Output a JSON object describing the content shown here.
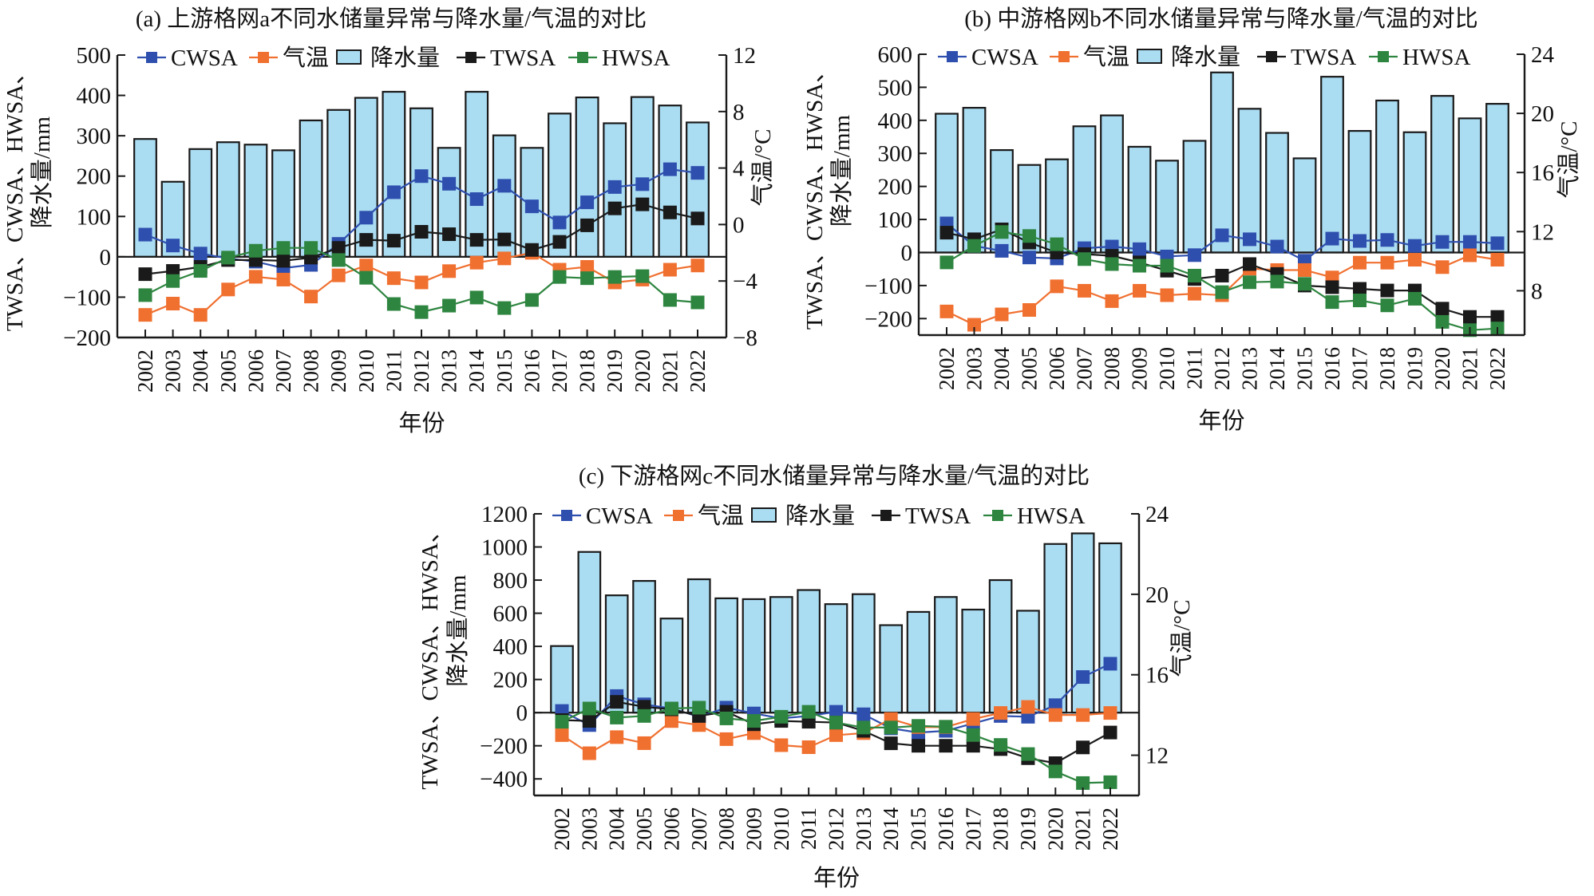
{
  "colors": {
    "cwsa": "#2f4fae",
    "temp": "#f07030",
    "precip_fill": "#aadcf2",
    "precip_edge": "#1a1a1a",
    "twsa": "#1a1a1a",
    "hwsa": "#2e8540"
  },
  "legend": [
    "CWSA",
    "气温",
    "降水量",
    "TWSA",
    "HWSA"
  ],
  "chart_data": [
    {
      "id": "a",
      "type": "bar+line",
      "title": "(a) 上游格网a不同水储量异常与降水量/气温的对比",
      "xlabel": "年份",
      "ylabel_lines": [
        "TWSA、CWSA、HWSA、",
        "降水量/mm"
      ],
      "y2label": "气温/°C",
      "categories": [
        "2002",
        "2003",
        "2004",
        "2005",
        "2006",
        "2007",
        "2008",
        "2009",
        "2010",
        "2011",
        "2012",
        "2013",
        "2014",
        "2015",
        "2016",
        "2017",
        "2018",
        "2019",
        "2020",
        "2021",
        "2022"
      ],
      "ylim": [
        -200,
        500
      ],
      "yticks": [
        -200,
        -100,
        0,
        100,
        200,
        300,
        400,
        500
      ],
      "y2lim": [
        -8,
        12
      ],
      "y2ticks": [
        -8,
        -4,
        0,
        4,
        8,
        12
      ],
      "legend_position": "top",
      "series": [
        {
          "name": "降水量",
          "type": "bar",
          "axis": "left",
          "values": [
            292,
            186,
            267,
            284,
            278,
            264,
            338,
            364,
            394,
            409,
            368,
            270,
            409,
            301,
            270,
            355,
            395,
            331,
            396,
            375,
            333
          ]
        },
        {
          "name": "CWSA",
          "type": "line",
          "axis": "left",
          "values": [
            55,
            28,
            8,
            -4,
            -12,
            -28,
            -20,
            32,
            97,
            160,
            200,
            181,
            143,
            176,
            125,
            85,
            135,
            173,
            180,
            217,
            208
          ]
        },
        {
          "name": "气温",
          "type": "line",
          "axis": "right",
          "values": [
            -6.4,
            -5.6,
            -6.4,
            -4.6,
            -3.7,
            -3.9,
            -5.1,
            -3.6,
            -2.9,
            -3.8,
            -4.1,
            -3.3,
            -2.7,
            -2.4,
            -2.0,
            -3.2,
            -3.0,
            -4.1,
            -3.9,
            -3.2,
            -2.9
          ]
        },
        {
          "name": "TWSA",
          "type": "line",
          "axis": "left",
          "values": [
            -43,
            -35,
            -25,
            -8,
            -8,
            -10,
            -2,
            22,
            42,
            40,
            62,
            56,
            42,
            43,
            17,
            37,
            78,
            120,
            130,
            110,
            95
          ]
        },
        {
          "name": "HWSA",
          "type": "line",
          "axis": "left",
          "values": [
            -95,
            -60,
            -35,
            -2,
            15,
            22,
            22,
            -8,
            -52,
            -117,
            -137,
            -121,
            -101,
            -127,
            -107,
            -50,
            -53,
            -50,
            -48,
            -107,
            -113
          ]
        }
      ]
    },
    {
      "id": "b",
      "type": "bar+line",
      "title": "(b) 中游格网b不同水储量异常与降水量/气温的对比",
      "xlabel": "年份",
      "ylabel_lines": [
        "TWSA、CWSA、HWSA、",
        "降水量/mm"
      ],
      "y2label": "气温/°C",
      "categories": [
        "2002",
        "2003",
        "2004",
        "2005",
        "2006",
        "2007",
        "2008",
        "2009",
        "2010",
        "2011",
        "2012",
        "2013",
        "2014",
        "2015",
        "2016",
        "2017",
        "2018",
        "2019",
        "2020",
        "2021",
        "2022"
      ],
      "ylim": [
        -250,
        600
      ],
      "yticks": [
        -200,
        -100,
        0,
        100,
        200,
        300,
        400,
        500,
        600
      ],
      "y2lim": [
        5,
        24
      ],
      "y2ticks": [
        8,
        12,
        16,
        20,
        24
      ],
      "legend_position": "top",
      "series": [
        {
          "name": "降水量",
          "type": "bar",
          "axis": "left",
          "values": [
            420,
            438,
            310,
            265,
            282,
            382,
            415,
            320,
            278,
            338,
            545,
            435,
            362,
            285,
            532,
            368,
            460,
            364,
            474,
            406,
            450
          ]
        },
        {
          "name": "CWSA",
          "type": "line",
          "axis": "left",
          "values": [
            88,
            20,
            5,
            -15,
            -18,
            13,
            18,
            10,
            -12,
            -8,
            52,
            40,
            18,
            -25,
            42,
            35,
            38,
            20,
            32,
            32,
            28
          ]
        },
        {
          "name": "气温",
          "type": "line",
          "axis": "right",
          "values": [
            6.6,
            5.7,
            6.4,
            6.7,
            8.3,
            8.0,
            7.3,
            8.0,
            7.7,
            7.8,
            7.7,
            9.5,
            9.4,
            9.4,
            8.9,
            9.9,
            9.9,
            10.1,
            9.6,
            10.4,
            10.1
          ]
        },
        {
          "name": "TWSA",
          "type": "line",
          "axis": "left",
          "values": [
            60,
            40,
            70,
            30,
            0,
            -5,
            -10,
            -30,
            -55,
            -80,
            -70,
            -35,
            -65,
            -100,
            -105,
            -110,
            -115,
            -115,
            -170,
            -195,
            -195
          ]
        },
        {
          "name": "HWSA",
          "type": "line",
          "axis": "left",
          "values": [
            -30,
            20,
            62,
            50,
            25,
            -20,
            -35,
            -40,
            -40,
            -70,
            -120,
            -90,
            -88,
            -95,
            -150,
            -145,
            -160,
            -140,
            -210,
            -235,
            -230
          ]
        }
      ]
    },
    {
      "id": "c",
      "type": "bar+line",
      "title": "(c) 下游格网c不同水储量异常与降水量/气温的对比",
      "xlabel": "年份",
      "ylabel_lines": [
        "TWSA、CWSA、HWSA、",
        "降水量/mm"
      ],
      "y2label": "气温/°C",
      "categories": [
        "2002",
        "2003",
        "2004",
        "2005",
        "2006",
        "2007",
        "2008",
        "2009",
        "2010",
        "2011",
        "2012",
        "2013",
        "2014",
        "2015",
        "2016",
        "2017",
        "2018",
        "2019",
        "2020",
        "2021",
        "2022"
      ],
      "ylim": [
        -500,
        1200
      ],
      "yticks": [
        -400,
        -200,
        0,
        200,
        400,
        600,
        800,
        1000,
        1200
      ],
      "y2lim": [
        10,
        24
      ],
      "y2ticks": [
        12,
        16,
        20,
        24
      ],
      "legend_position": "top",
      "series": [
        {
          "name": "降水量",
          "type": "bar",
          "axis": "left",
          "values": [
            402,
            970,
            708,
            795,
            568,
            805,
            690,
            685,
            698,
            740,
            655,
            715,
            528,
            608,
            698,
            622,
            800,
            615,
            1018,
            1082,
            1022
          ]
        },
        {
          "name": "CWSA",
          "type": "line",
          "axis": "left",
          "values": [
            10,
            -75,
            100,
            50,
            25,
            -25,
            30,
            -5,
            -35,
            -20,
            5,
            -10,
            -95,
            -120,
            -110,
            -65,
            -20,
            -25,
            45,
            215,
            295
          ]
        },
        {
          "name": "气温",
          "type": "line",
          "axis": "right",
          "values": [
            13.0,
            12.1,
            12.9,
            12.6,
            13.7,
            13.5,
            12.8,
            13.1,
            12.5,
            12.4,
            13.0,
            13.1,
            13.8,
            13.4,
            13.4,
            13.8,
            14.1,
            14.4,
            14.0,
            14.0,
            14.1
          ]
        },
        {
          "name": "TWSA",
          "type": "line",
          "axis": "left",
          "values": [
            -45,
            -50,
            65,
            35,
            20,
            -20,
            5,
            -70,
            -50,
            -55,
            -60,
            -110,
            -185,
            -200,
            -200,
            -200,
            -220,
            -275,
            -305,
            -210,
            -120
          ]
        },
        {
          "name": "HWSA",
          "type": "line",
          "axis": "left",
          "values": [
            -55,
            25,
            -30,
            -20,
            25,
            30,
            -35,
            -50,
            -25,
            5,
            -60,
            -90,
            -90,
            -80,
            -85,
            -135,
            -195,
            -250,
            -355,
            -425,
            -420
          ]
        }
      ]
    }
  ]
}
